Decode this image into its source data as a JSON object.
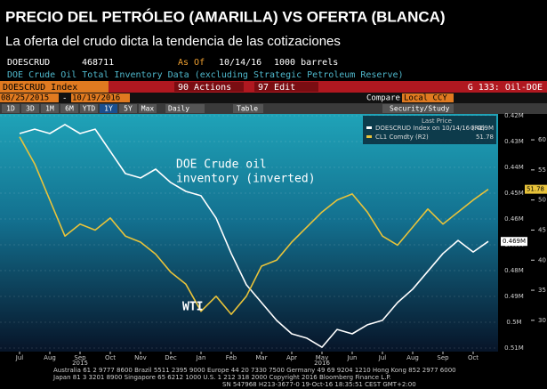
{
  "header": {
    "title": "PRECIO DEL PETRÓLEO (AMARILLA) VS OFERTA (BLANCA)",
    "subtitle": "La oferta del crudo dicta la tendencia de las cotizaciones"
  },
  "terminal": {
    "ticker": "DOESCRUD",
    "last": "468711",
    "as_of_label": "As Of",
    "as_of": "10/14/16",
    "units": "1000 barrels",
    "description": "DOE Crude Oil Total Inventory Data (excluding Strategic Petroleum Reserve)",
    "index": "DOESCRUD Index",
    "actions": "90 Actions",
    "edit": "97 Edit",
    "page": "G 133: Oil-DOE",
    "start_date": "08/25/2015",
    "end_date": "10/19/2016",
    "compare": "Compare",
    "currency": "Local CCY",
    "periods": [
      "1D",
      "3D",
      "1M",
      "6M",
      "YTD",
      "1Y",
      "5Y",
      "Max"
    ],
    "frequency": "Daily",
    "table": "Table",
    "security_study": "Security/Study"
  },
  "chart_data": {
    "type": "line",
    "categories": [
      "Jul",
      null,
      "Aug",
      null,
      "Sep",
      null,
      "Oct",
      null,
      "Nov",
      null,
      "Dec",
      null,
      "Jan",
      null,
      "Feb",
      null,
      "Mar",
      null,
      "Apr",
      null,
      "May",
      null,
      "Jun",
      null,
      "Jul",
      null,
      "Aug",
      null,
      "Sep",
      null,
      "Oct",
      null
    ],
    "year_labels": [
      "2015",
      "2016"
    ],
    "legend_title": "Last Price",
    "annotations": {
      "inventory": [
        "DOE Crude oil",
        "inventory (inverted)"
      ],
      "price": "WTI"
    },
    "series": [
      {
        "name": "DOESCRUD Index on 10/14/16 (R1)",
        "color": "#ffffff",
        "values": [
          426900,
          425200,
          426900,
          423400,
          426900,
          425200,
          433800,
          442400,
          444100,
          440700,
          445900,
          449300,
          451000,
          459700,
          473400,
          485500,
          492400,
          499300,
          504500,
          506200,
          509700,
          502800,
          504500,
          501000,
          499300,
          492400,
          487200,
          480300,
          473400,
          468300,
          472800,
          468711
        ],
        "value_labels": [
          null,
          null,
          null,
          null,
          null,
          null,
          null,
          null,
          null,
          null,
          null,
          null,
          null,
          null,
          null,
          null,
          null,
          null,
          null,
          null,
          null,
          null,
          null,
          null,
          null,
          null,
          null,
          null,
          null,
          null,
          null,
          "0.469M"
        ]
      },
      {
        "name": "CL1 Comdty (R2)",
        "color": "#e8c33a",
        "axis": "y2",
        "values": [
          60.5,
          56,
          50,
          44,
          46,
          45,
          47,
          44,
          43,
          41,
          38,
          36,
          31.5,
          34,
          31,
          34,
          39,
          40,
          43,
          45.5,
          48,
          50,
          51,
          48,
          44,
          42.5,
          45.5,
          48.5,
          46,
          48,
          50,
          51.78
        ]
      }
    ],
    "y_inverted": true,
    "ylim": [
      419300,
      511400
    ],
    "yticks": [
      {
        "value": 420000,
        "label": "0.42M"
      },
      {
        "value": 430000,
        "label": "0.43M"
      },
      {
        "value": 440000,
        "label": "0.44M"
      },
      {
        "value": 450000,
        "label": "0.45M"
      },
      {
        "value": 460000,
        "label": "0.46M"
      },
      {
        "value": 470000,
        "label": "0.47M"
      },
      {
        "value": 480000,
        "label": "0.48M"
      },
      {
        "value": 490000,
        "label": "0.49M"
      },
      {
        "value": 500000,
        "label": "0.5M"
      },
      {
        "value": 510000,
        "label": "0.51M"
      }
    ],
    "y2lim": [
      24.8,
      64.3
    ],
    "y2ticks": [
      30,
      35,
      40,
      45,
      50,
      55,
      60
    ],
    "grid": true
  },
  "footer": [
    "Australia 61 2 9777 8600 Brazil 5511 2395 9000 Europe 44 20 7330 7500 Germany 49 69 9204 1210 Hong Kong 852 2977 6000",
    "Japan 81 3 3201 8900    Singapore 65 6212 1000    U.S. 1 212 318 2000    Copyright 2016 Bloomberg Finance L.P.",
    "SN 547968 H213-3677-0 19-Oct-16 18:35:51 CEST GMT+2:00"
  ]
}
